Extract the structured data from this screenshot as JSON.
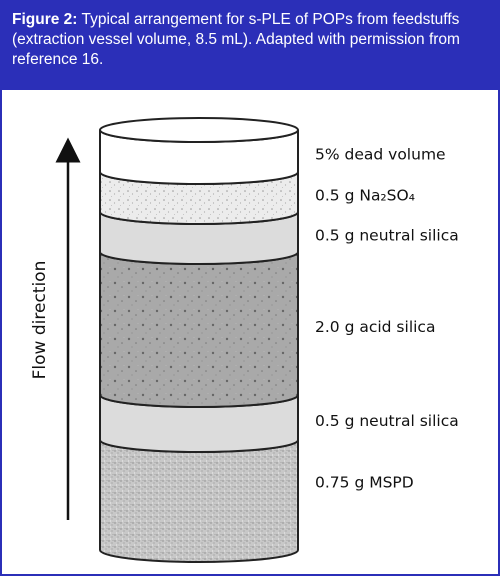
{
  "header": {
    "label": "Figure 2:",
    "text": "Typical arrangement for s-PLE of POPs from feedstuffs (extraction vessel volume, 8.5 mL). Adapted with permission from reference 16."
  },
  "diagram": {
    "axis_label": "Flow direction",
    "layers": [
      {
        "label": "5% dead volume"
      },
      {
        "label": "0.5 g Na₂SO₄"
      },
      {
        "label": "0.5 g neutral silica"
      },
      {
        "label": "2.0 g acid silica"
      },
      {
        "label": "0.5 g neutral silica"
      },
      {
        "label": "0.75 g MSPD"
      }
    ]
  }
}
